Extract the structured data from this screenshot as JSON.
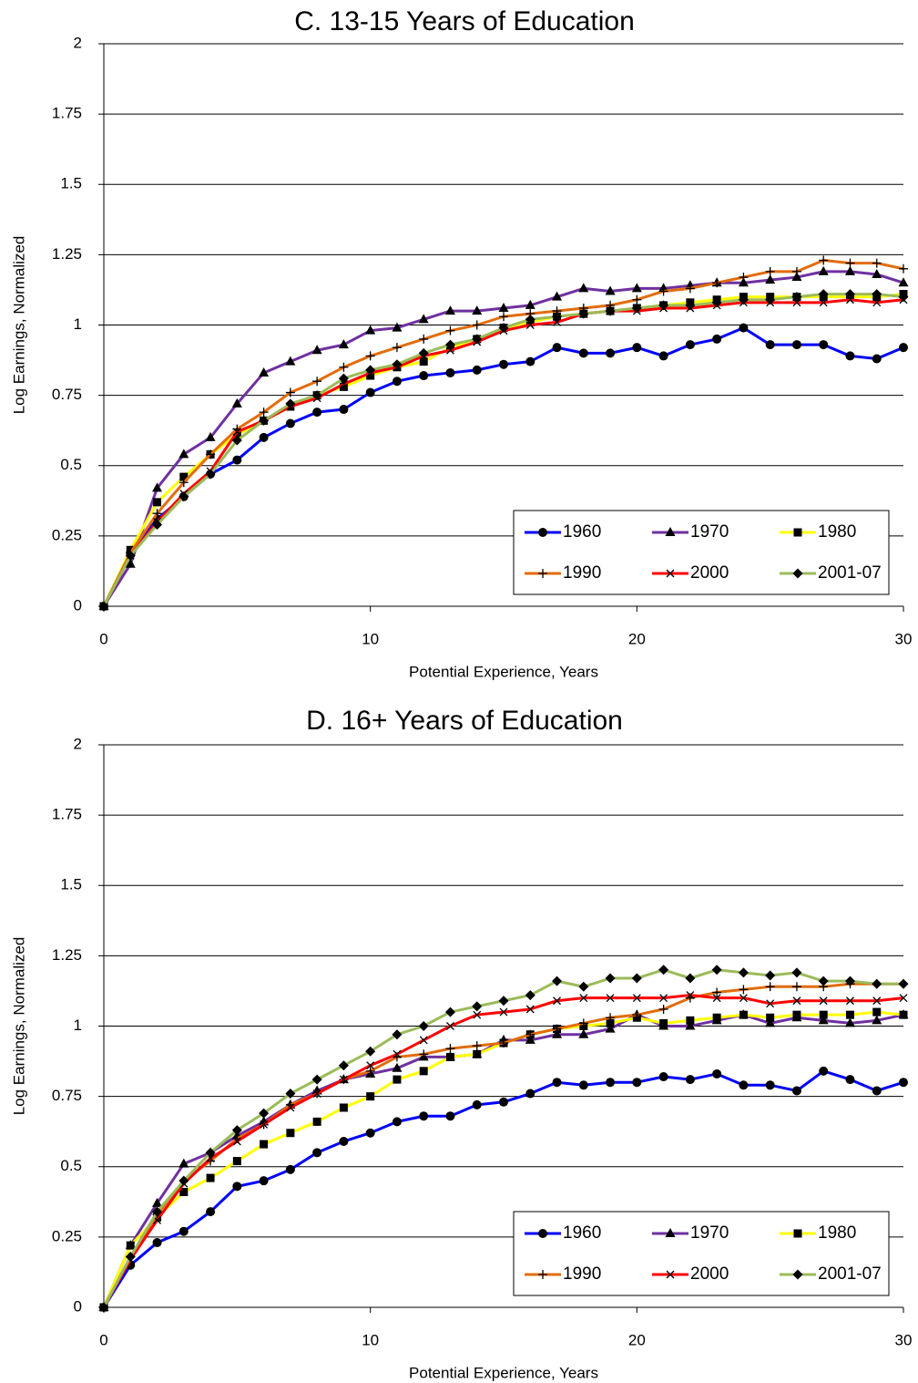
{
  "chart_data": [
    {
      "type": "line",
      "title": "C. 13-15 Years of Education",
      "xlabel": "Potential Experience,  Years",
      "ylabel": "Log Earnings, Normalized",
      "x": [
        0,
        1,
        2,
        3,
        4,
        5,
        6,
        7,
        8,
        9,
        10,
        11,
        12,
        13,
        14,
        15,
        16,
        17,
        18,
        19,
        20,
        21,
        22,
        23,
        24,
        25,
        26,
        27,
        28,
        29,
        30
      ],
      "xlim": [
        0,
        30
      ],
      "xticks": [
        0,
        10,
        20,
        30
      ],
      "ylim": [
        0,
        2
      ],
      "yticks": [
        0,
        0.25,
        0.5,
        0.75,
        1,
        1.25,
        1.5,
        1.75,
        2
      ],
      "grid": true,
      "legend": "lower right",
      "series": [
        {
          "name": "1960",
          "color": "#0000ff",
          "marker": "circle",
          "values": [
            0,
            0.19,
            0.31,
            0.39,
            0.47,
            0.52,
            0.6,
            0.65,
            0.69,
            0.7,
            0.76,
            0.8,
            0.82,
            0.83,
            0.84,
            0.86,
            0.87,
            0.92,
            0.9,
            0.9,
            0.92,
            0.89,
            0.93,
            0.95,
            0.99,
            0.93,
            0.93,
            0.93,
            0.89,
            0.88,
            0.92
          ]
        },
        {
          "name": "1970",
          "color": "#7030a0",
          "marker": "triangle",
          "values": [
            0,
            0.15,
            0.42,
            0.54,
            0.6,
            0.72,
            0.83,
            0.87,
            0.91,
            0.93,
            0.98,
            0.99,
            1.02,
            1.05,
            1.05,
            1.06,
            1.07,
            1.1,
            1.13,
            1.12,
            1.13,
            1.13,
            1.14,
            1.15,
            1.15,
            1.16,
            1.17,
            1.19,
            1.19,
            1.18,
            1.15
          ]
        },
        {
          "name": "1980",
          "color": "#ffff00",
          "marker": "square",
          "values": [
            0,
            0.2,
            0.37,
            0.46,
            0.54,
            0.61,
            0.66,
            0.71,
            0.75,
            0.78,
            0.82,
            0.85,
            0.87,
            0.92,
            0.95,
            0.99,
            1.01,
            1.03,
            1.04,
            1.05,
            1.06,
            1.07,
            1.08,
            1.09,
            1.1,
            1.1,
            1.1,
            1.1,
            1.1,
            1.1,
            1.11
          ]
        },
        {
          "name": "1990",
          "color": "#e36c0a",
          "marker": "plus",
          "values": [
            0,
            0.19,
            0.33,
            0.44,
            0.54,
            0.63,
            0.69,
            0.76,
            0.8,
            0.85,
            0.89,
            0.92,
            0.95,
            0.98,
            1.0,
            1.03,
            1.04,
            1.05,
            1.06,
            1.07,
            1.09,
            1.12,
            1.13,
            1.15,
            1.17,
            1.19,
            1.19,
            1.23,
            1.22,
            1.22,
            1.2
          ]
        },
        {
          "name": "2000",
          "color": "#ff0000",
          "marker": "cross",
          "values": [
            0,
            0.18,
            0.3,
            0.4,
            0.48,
            0.62,
            0.66,
            0.71,
            0.74,
            0.79,
            0.83,
            0.85,
            0.89,
            0.91,
            0.94,
            0.98,
            1.0,
            1.01,
            1.04,
            1.05,
            1.05,
            1.06,
            1.06,
            1.07,
            1.08,
            1.08,
            1.08,
            1.08,
            1.09,
            1.08,
            1.09
          ]
        },
        {
          "name": "2001-07",
          "color": "#9bbb59",
          "marker": "diamond",
          "values": [
            0,
            0.18,
            0.29,
            0.39,
            0.47,
            0.59,
            0.66,
            0.72,
            0.75,
            0.81,
            0.84,
            0.86,
            0.9,
            0.93,
            0.95,
            0.99,
            1.02,
            1.03,
            1.04,
            1.05,
            1.06,
            1.07,
            1.07,
            1.08,
            1.09,
            1.09,
            1.1,
            1.11,
            1.11,
            1.11,
            1.1
          ]
        }
      ]
    },
    {
      "type": "line",
      "title": "D. 16+ Years of Education",
      "xlabel": "Potential Experience,  Years",
      "ylabel": "Log Earnings, Normalized",
      "x": [
        0,
        1,
        2,
        3,
        4,
        5,
        6,
        7,
        8,
        9,
        10,
        11,
        12,
        13,
        14,
        15,
        16,
        17,
        18,
        19,
        20,
        21,
        22,
        23,
        24,
        25,
        26,
        27,
        28,
        29,
        30
      ],
      "xlim": [
        0,
        30
      ],
      "xticks": [
        0,
        10,
        20,
        30
      ],
      "ylim": [
        0,
        2
      ],
      "yticks": [
        0,
        0.25,
        0.5,
        0.75,
        1,
        1.25,
        1.5,
        1.75,
        2
      ],
      "grid": true,
      "legend": "lower right",
      "series": [
        {
          "name": "1960",
          "color": "#0000ff",
          "marker": "circle",
          "values": [
            0,
            0.15,
            0.23,
            0.27,
            0.34,
            0.43,
            0.45,
            0.49,
            0.55,
            0.59,
            0.62,
            0.66,
            0.68,
            0.68,
            0.72,
            0.73,
            0.76,
            0.8,
            0.79,
            0.8,
            0.8,
            0.82,
            0.81,
            0.83,
            0.79,
            0.79,
            0.77,
            0.84,
            0.81,
            0.77,
            0.8
          ]
        },
        {
          "name": "1970",
          "color": "#7030a0",
          "marker": "triangle",
          "values": [
            0,
            0.22,
            0.37,
            0.51,
            0.55,
            0.61,
            0.66,
            0.72,
            0.77,
            0.81,
            0.83,
            0.85,
            0.89,
            0.89,
            0.9,
            0.95,
            0.95,
            0.97,
            0.97,
            0.99,
            1.04,
            1.0,
            1.0,
            1.02,
            1.04,
            1.01,
            1.03,
            1.02,
            1.01,
            1.02,
            1.04
          ]
        },
        {
          "name": "1980",
          "color": "#ffff00",
          "marker": "square",
          "values": [
            0,
            0.22,
            0.32,
            0.41,
            0.46,
            0.52,
            0.58,
            0.62,
            0.66,
            0.71,
            0.75,
            0.81,
            0.84,
            0.89,
            0.9,
            0.94,
            0.97,
            0.99,
            1.0,
            1.01,
            1.03,
            1.01,
            1.02,
            1.03,
            1.04,
            1.03,
            1.04,
            1.04,
            1.04,
            1.05,
            1.04
          ]
        },
        {
          "name": "1990",
          "color": "#e36c0a",
          "marker": "plus",
          "values": [
            0,
            0.18,
            0.33,
            0.45,
            0.52,
            0.6,
            0.65,
            0.72,
            0.76,
            0.81,
            0.84,
            0.89,
            0.9,
            0.92,
            0.93,
            0.94,
            0.97,
            0.99,
            1.01,
            1.03,
            1.04,
            1.06,
            1.1,
            1.12,
            1.13,
            1.14,
            1.14,
            1.14,
            1.15,
            1.15,
            1.15
          ]
        },
        {
          "name": "2000",
          "color": "#ff0000",
          "marker": "cross",
          "values": [
            0,
            0.17,
            0.31,
            0.44,
            0.53,
            0.59,
            0.65,
            0.71,
            0.76,
            0.81,
            0.86,
            0.9,
            0.95,
            1.0,
            1.04,
            1.05,
            1.06,
            1.09,
            1.1,
            1.1,
            1.1,
            1.1,
            1.11,
            1.1,
            1.1,
            1.08,
            1.09,
            1.09,
            1.09,
            1.09,
            1.1
          ]
        },
        {
          "name": "2001-07",
          "color": "#9bbb59",
          "marker": "diamond",
          "values": [
            0,
            0.18,
            0.34,
            0.45,
            0.55,
            0.63,
            0.69,
            0.76,
            0.81,
            0.86,
            0.91,
            0.97,
            1.0,
            1.05,
            1.07,
            1.09,
            1.11,
            1.16,
            1.14,
            1.17,
            1.17,
            1.2,
            1.17,
            1.2,
            1.19,
            1.18,
            1.19,
            1.16,
            1.16,
            1.15,
            1.15
          ]
        }
      ]
    }
  ]
}
